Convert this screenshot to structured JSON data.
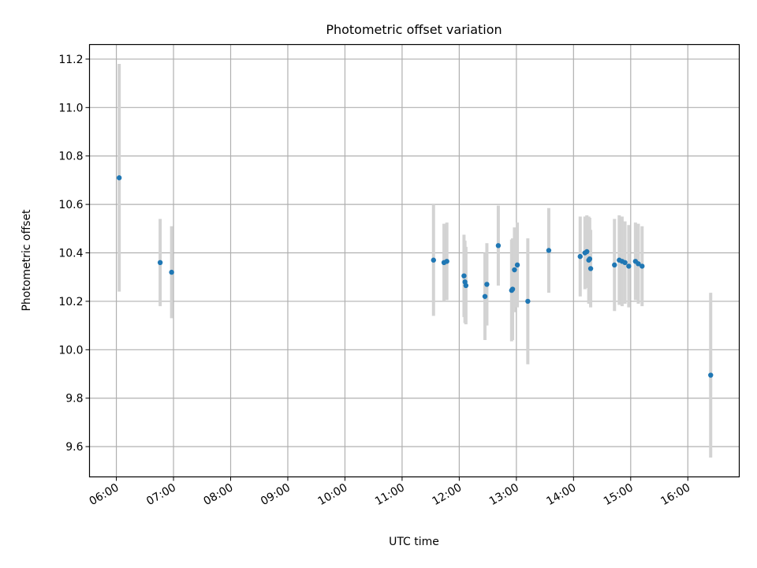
{
  "chart_data": {
    "type": "scatter",
    "title": "Photometric offset variation",
    "xlabel": "UTC time",
    "ylabel": "Photometric offset",
    "x_tick_labels": [
      "06:00",
      "07:00",
      "08:00",
      "09:00",
      "10:00",
      "11:00",
      "12:00",
      "13:00",
      "14:00",
      "15:00",
      "16:00"
    ],
    "x_tick_hours": [
      6,
      7,
      8,
      9,
      10,
      11,
      12,
      13,
      14,
      15,
      16
    ],
    "y_ticks": [
      9.6,
      9.8,
      10.0,
      10.2,
      10.4,
      10.6,
      10.8,
      11.0,
      11.2
    ],
    "y_tick_labels": [
      "9.6",
      "9.8",
      "10.0",
      "10.2",
      "10.4",
      "10.6",
      "10.8",
      "11.0",
      "11.2"
    ],
    "xlim_hours": [
      5.53,
      16.9
    ],
    "ylim": [
      9.475,
      11.26
    ],
    "grid": true,
    "colors": {
      "marker": "#1f77b4",
      "errorbar": "#d3d3d3",
      "grid": "#b0b0b0"
    },
    "points": [
      {
        "time": "06:03",
        "y": 10.71,
        "err": 0.47
      },
      {
        "time": "06:46",
        "y": 10.36,
        "err": 0.18
      },
      {
        "time": "06:58",
        "y": 10.32,
        "err": 0.19
      },
      {
        "time": "11:33",
        "y": 10.37,
        "err": 0.23
      },
      {
        "time": "11:44",
        "y": 10.36,
        "err": 0.16
      },
      {
        "time": "11:47",
        "y": 10.365,
        "err": 0.16
      },
      {
        "time": "12:05",
        "y": 10.305,
        "err": 0.17
      },
      {
        "time": "12:06",
        "y": 10.28,
        "err": 0.17
      },
      {
        "time": "12:07",
        "y": 10.265,
        "err": 0.16
      },
      {
        "time": "12:27",
        "y": 10.22,
        "err": 0.18
      },
      {
        "time": "12:29",
        "y": 10.27,
        "err": 0.17
      },
      {
        "time": "12:41",
        "y": 10.43,
        "err": 0.165
      },
      {
        "time": "12:55",
        "y": 10.245,
        "err": 0.21
      },
      {
        "time": "12:56",
        "y": 10.25,
        "err": 0.21
      },
      {
        "time": "12:58",
        "y": 10.33,
        "err": 0.175
      },
      {
        "time": "13:01",
        "y": 10.35,
        "err": 0.175
      },
      {
        "time": "13:12",
        "y": 10.2,
        "err": 0.26
      },
      {
        "time": "13:34",
        "y": 10.41,
        "err": 0.175
      },
      {
        "time": "14:07",
        "y": 10.385,
        "err": 0.165
      },
      {
        "time": "14:12",
        "y": 10.4,
        "err": 0.15
      },
      {
        "time": "14:14",
        "y": 10.405,
        "err": 0.15
      },
      {
        "time": "14:16",
        "y": 10.37,
        "err": 0.18
      },
      {
        "time": "14:17",
        "y": 10.375,
        "err": 0.17
      },
      {
        "time": "14:18",
        "y": 10.335,
        "err": 0.16
      },
      {
        "time": "14:43",
        "y": 10.35,
        "err": 0.19
      },
      {
        "time": "14:48",
        "y": 10.37,
        "err": 0.185
      },
      {
        "time": "14:51",
        "y": 10.365,
        "err": 0.185
      },
      {
        "time": "14:54",
        "y": 10.36,
        "err": 0.17
      },
      {
        "time": "14:58",
        "y": 10.345,
        "err": 0.17
      },
      {
        "time": "15:05",
        "y": 10.365,
        "err": 0.16
      },
      {
        "time": "15:08",
        "y": 10.355,
        "err": 0.165
      },
      {
        "time": "15:12",
        "y": 10.345,
        "err": 0.165
      },
      {
        "time": "16:24",
        "y": 9.895,
        "err": 0.34
      }
    ]
  }
}
